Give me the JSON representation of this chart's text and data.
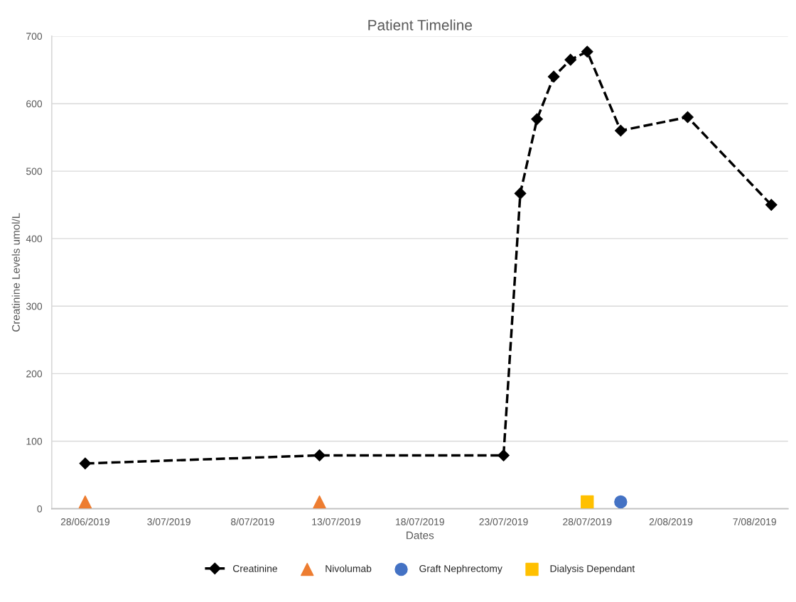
{
  "chart_data": {
    "type": "line",
    "title": "Patient Timeline",
    "xlabel": "Dates",
    "ylabel": "Creatinine Levels umol/L",
    "series": [
      {
        "name": "Creatinine",
        "color": "#000000",
        "marker": "diamond",
        "line_style": "dashed",
        "x": [
          "2019-06-28",
          "2019-07-12",
          "2019-07-23",
          "2019-07-24",
          "2019-07-25",
          "2019-07-26",
          "2019-07-27",
          "2019-07-28",
          "2019-07-30",
          "2019-08-03",
          "2019-08-08"
        ],
        "values": [
          67,
          79,
          79,
          467,
          577,
          640,
          665,
          677,
          560,
          580,
          450
        ]
      },
      {
        "name": "Nivolumab",
        "type": "scatter",
        "color": "#ed7d31",
        "marker": "triangle",
        "x": [
          "2019-06-28",
          "2019-07-12"
        ],
        "values": [
          10,
          10
        ]
      },
      {
        "name": "Graft Nephrectomy",
        "type": "scatter",
        "color": "#4472c4",
        "marker": "circle",
        "x": [
          "2019-07-30"
        ],
        "values": [
          10
        ]
      },
      {
        "name": "Dialysis Dependant",
        "type": "scatter",
        "color": "#ffc000",
        "marker": "square",
        "x": [
          "2019-07-28"
        ],
        "values": [
          10
        ]
      }
    ],
    "xlim": [
      "2019-06-26",
      "2019-08-09"
    ],
    "xticks": [
      {
        "value": "2019-06-28",
        "label": "28/06/2019"
      },
      {
        "value": "2019-07-03",
        "label": "3/07/2019"
      },
      {
        "value": "2019-07-08",
        "label": "8/07/2019"
      },
      {
        "value": "2019-07-13",
        "label": "13/07/2019"
      },
      {
        "value": "2019-07-18",
        "label": "18/07/2019"
      },
      {
        "value": "2019-07-23",
        "label": "23/07/2019"
      },
      {
        "value": "2019-07-28",
        "label": "28/07/2019"
      },
      {
        "value": "2019-08-02",
        "label": "2/08/2019"
      },
      {
        "value": "2019-08-07",
        "label": "7/08/2019"
      }
    ],
    "ylim": [
      0,
      700
    ],
    "yticks": [
      0,
      100,
      200,
      300,
      400,
      500,
      600,
      700
    ],
    "grid": "y",
    "legend": "bottom"
  }
}
